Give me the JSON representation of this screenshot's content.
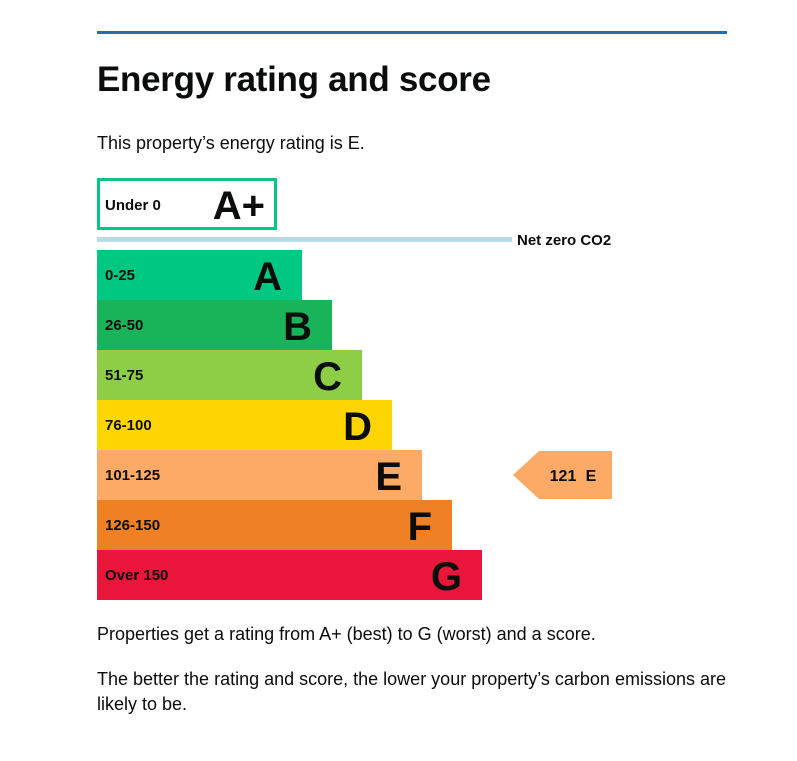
{
  "page": {
    "title": "Energy rating and score",
    "intro": "This property’s energy rating is E.",
    "footnote_1": "Properties get a rating from A+ (best) to G (worst) and a score.",
    "footnote_2": "The better the rating and score, the lower your property’s carbon emissions are likely to be."
  },
  "chart_data": {
    "type": "bar",
    "title": "",
    "categories": [
      "A+",
      "A",
      "B",
      "C",
      "D",
      "E",
      "F",
      "G"
    ],
    "ranges": [
      "Under 0",
      "0-25",
      "26-50",
      "51-75",
      "76-100",
      "101-125",
      "126-150",
      "Over 150"
    ],
    "colors": [
      "#00c781",
      "#00c781",
      "#19b459",
      "#8dce46",
      "#ffd500",
      "#fcaa65",
      "#ef8023",
      "#e9153b"
    ],
    "reference_line": {
      "label": "Net zero CO2",
      "between": [
        "A+",
        "A"
      ]
    },
    "current": {
      "score": 121,
      "rating": "E",
      "score_label": "121",
      "rating_label": "E"
    }
  }
}
